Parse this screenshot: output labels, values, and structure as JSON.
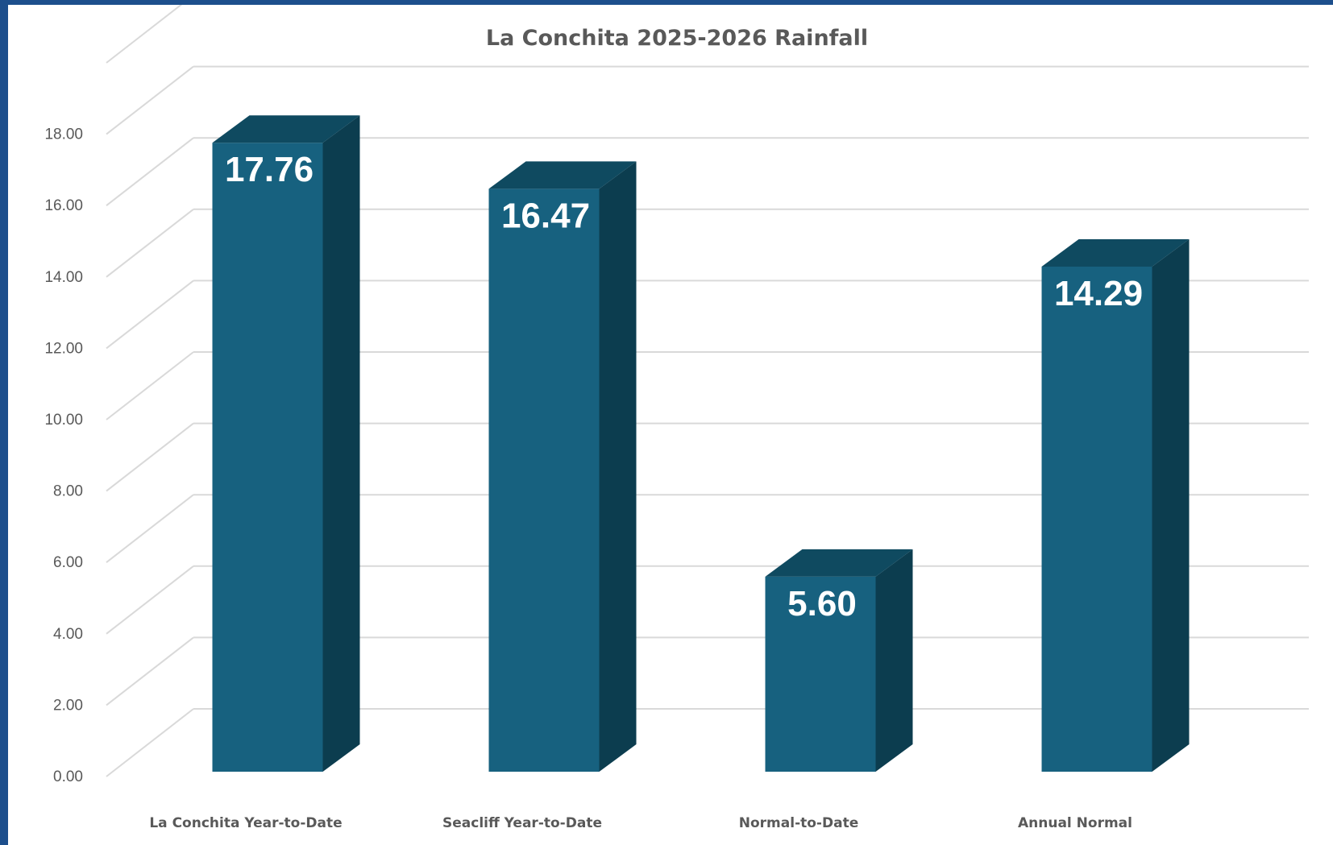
{
  "chart_data": {
    "type": "bar",
    "title": "La Conchita 2025-2026 Rainfall",
    "categories": [
      "La Conchita Year-to-Date",
      "Seacliff Year-to-Date",
      "Normal-to-Date",
      "Annual Normal"
    ],
    "series": [
      {
        "values": [
          17.76,
          16.47,
          5.6,
          14.29
        ]
      }
    ],
    "data_labels": [
      "17.76",
      "16.47",
      "5.60",
      "14.29"
    ],
    "y_ticks": [
      "0.00",
      "2.00",
      "4.00",
      "6.00",
      "8.00",
      "10.00",
      "12.00",
      "14.00",
      "16.00",
      "18.00"
    ],
    "ylim": [
      0,
      20
    ],
    "grid": true,
    "three_d": true,
    "colors": {
      "bar_front": "#17617f",
      "bar_side": "#0c3d4f",
      "bar_top": "#0f4a60",
      "grid": "#d9d9d9"
    }
  }
}
